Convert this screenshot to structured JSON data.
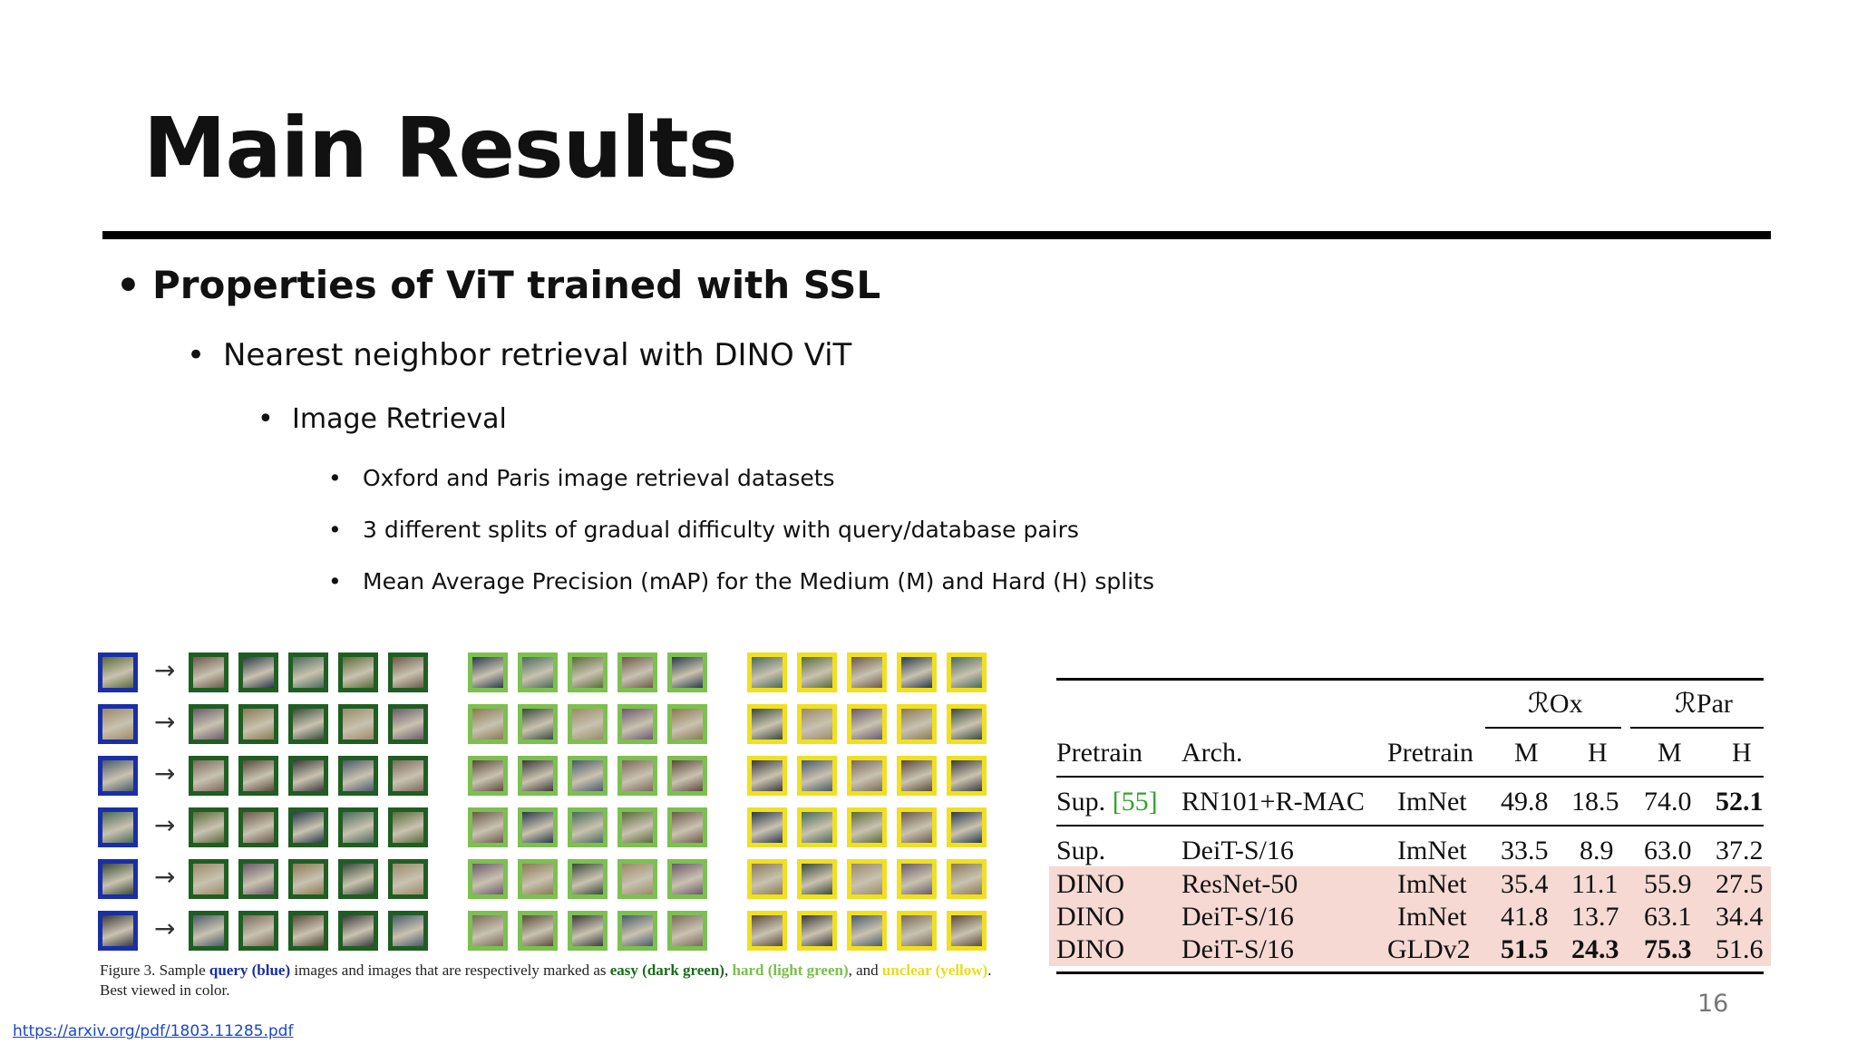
{
  "slide": {
    "title": "Main Results",
    "bullets": {
      "b1": "Properties of ViT trained with SSL",
      "b2": "Nearest neighbor retrieval with DINO ViT",
      "b3": "Image Retrieval",
      "b4a": "Oxford and Paris image retrieval datasets",
      "b4b": "3 different splits of gradual difficulty with query/database pairs",
      "b4c": "Mean Average Precision (mAP) for the Medium (M) and Hard (H) splits"
    },
    "bullet_symbol": "•",
    "page_number": "16",
    "link_text": "https://arxiv.org/pdf/1803.11285.pdf"
  },
  "figure": {
    "arrow": "→",
    "rows": 6,
    "groups": [
      {
        "label": "query",
        "color": "#1a2ea8",
        "cols": 1
      },
      {
        "label": "easy",
        "color": "#1f5e22",
        "cols": 5
      },
      {
        "label": "hard",
        "color": "#7cc04f",
        "cols": 5
      },
      {
        "label": "unclear",
        "color": "#f0e020",
        "cols": 5
      }
    ],
    "caption": {
      "p1": "Figure 3. Sample ",
      "query": "query (blue)",
      "p2": " images and images that are respectively marked as ",
      "easy": "easy (dark green)",
      "p3": ", ",
      "hard": "hard (light green)",
      "p4": ", and ",
      "unclear": "unclear (yellow)",
      "p5": ". Best viewed in color."
    }
  },
  "table": {
    "group_headers": {
      "rox": "ℛOx",
      "rpar": "ℛPar"
    },
    "headers": {
      "pretrain": "Pretrain",
      "arch": "Arch.",
      "pretrain2": "Pretrain",
      "m1": "M",
      "h1": "H",
      "m2": "M",
      "h2": "H"
    },
    "row0": {
      "pretrain": "Sup.",
      "cite": "[55]",
      "arch": "RN101+R-MAC",
      "data": "ImNet",
      "rox_m": "49.8",
      "rox_h": "18.5",
      "rpar_m": "74.0",
      "rpar_h": "52.1"
    },
    "row1": {
      "pretrain": "Sup.",
      "arch": "DeiT-S/16",
      "data": "ImNet",
      "rox_m": "33.5",
      "rox_h": "8.9",
      "rpar_m": "63.0",
      "rpar_h": "37.2"
    },
    "row2": {
      "pretrain": "DINO",
      "arch": "ResNet-50",
      "data": "ImNet",
      "rox_m": "35.4",
      "rox_h": "11.1",
      "rpar_m": "55.9",
      "rpar_h": "27.5"
    },
    "row3": {
      "pretrain": "DINO",
      "arch": "DeiT-S/16",
      "data": "ImNet",
      "rox_m": "41.8",
      "rox_h": "13.7",
      "rpar_m": "63.1",
      "rpar_h": "34.4"
    },
    "row4": {
      "pretrain": "DINO",
      "arch": "DeiT-S/16",
      "data": "GLDv2",
      "rox_m": "51.5",
      "rox_h": "24.3",
      "rpar_m": "75.3",
      "rpar_h": "51.6"
    },
    "highlight_color": "#f6d9d3"
  }
}
